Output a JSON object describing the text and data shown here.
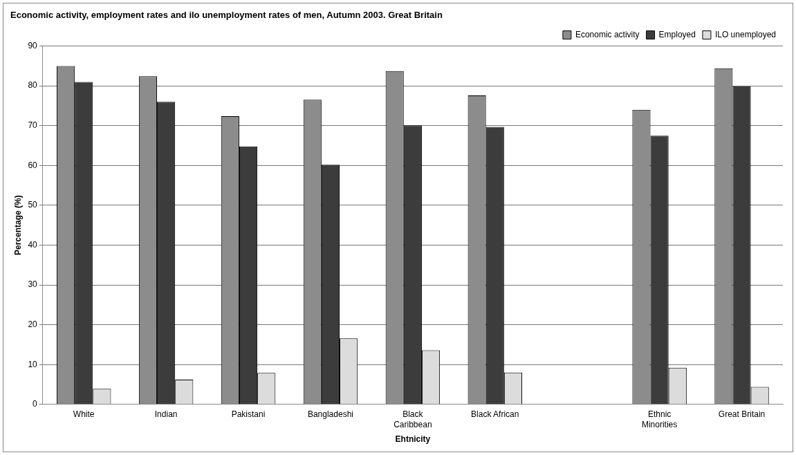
{
  "chart_data": {
    "type": "bar",
    "title": "Economic activity, employment rates and ilo unemployment rates of men, Autumn 2003. Great Britain",
    "xlabel": "Ehtnicity",
    "ylabel": "Percentage (%)",
    "categories": [
      "White",
      "Indian",
      "Pakistani",
      "Bangladeshi",
      "Black Caribbean",
      "Black African",
      null,
      "Ethnic Minorities",
      "Great Britain"
    ],
    "series": [
      {
        "name": "Economic activity",
        "color": "#8c8c8c",
        "values": [
          85,
          82.4,
          72.4,
          76.5,
          83.7,
          77.6,
          null,
          74,
          84.4
        ]
      },
      {
        "name": "Employed",
        "color": "#3c3c3c",
        "values": [
          81,
          76,
          64.8,
          60.2,
          70.1,
          69.7,
          null,
          67.5,
          79.9
        ]
      },
      {
        "name": "ILO unemployed",
        "color": "#dcdcdc",
        "values": [
          3.9,
          6.2,
          7.9,
          16.6,
          13.6,
          8,
          null,
          9.2,
          4.4
        ]
      }
    ],
    "ylim": [
      0,
      90
    ],
    "yticks": [
      0,
      10,
      20,
      30,
      40,
      50,
      60,
      70,
      80,
      90
    ],
    "grid": "y",
    "legend": "top right"
  }
}
